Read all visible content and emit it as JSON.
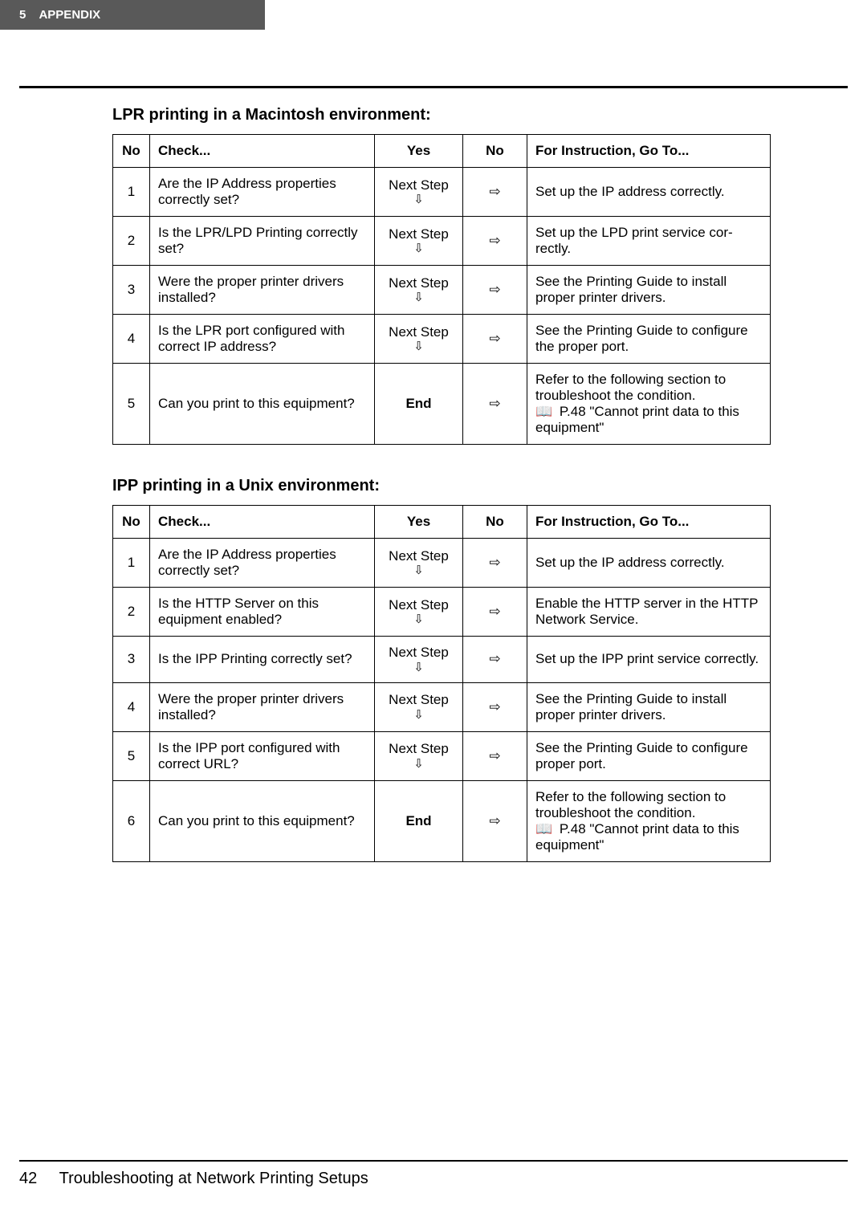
{
  "header": {
    "chapter": "5",
    "title": "APPENDIX"
  },
  "footer": {
    "page_number": "42",
    "section": "Troubleshooting at Network Printing Setups"
  },
  "glyphs": {
    "arrow_down": "⇩",
    "arrow_right": "⇨",
    "book": "📖"
  },
  "table_headers": {
    "no": "No",
    "check": "Check...",
    "yes": "Yes",
    "no_col": "No",
    "instruction": "For Instruction, Go To..."
  },
  "common": {
    "next_step": "Next Step",
    "end": "End"
  },
  "sections": [
    {
      "title": "LPR printing in a Macintosh environment:",
      "rows": [
        {
          "no": "1",
          "check": "Are the IP Address proper­ties correctly set?",
          "yes_type": "next",
          "instruction": "Set up the IP address correctly.",
          "has_ref": false
        },
        {
          "no": "2",
          "check": "Is the LPR/LPD Printing cor­rectly set?",
          "yes_type": "next",
          "instruction": "Set up the LPD print service cor­rectly.",
          "has_ref": false
        },
        {
          "no": "3",
          "check": "Were the proper printer driv­ers installed?",
          "yes_type": "next",
          "instruction": "See the Printing Guide to install proper printer drivers.",
          "has_ref": false
        },
        {
          "no": "4",
          "check": "Is the LPR port configured with correct IP address?",
          "yes_type": "next",
          "instruction": "See the Printing Guide to config­ure the proper port.",
          "has_ref": false
        },
        {
          "no": "5",
          "check": "Can you print to this equip­ment?",
          "yes_type": "end",
          "instruction": "Refer to the following section to troubleshoot the condition.",
          "has_ref": true,
          "ref": "P.48 \"Cannot print data to this equipment\""
        }
      ]
    },
    {
      "title": "IPP printing in a Unix environment:",
      "rows": [
        {
          "no": "1",
          "check": "Are the IP Address proper­ties correctly set?",
          "yes_type": "next",
          "instruction": "Set up the IP address correctly.",
          "has_ref": false
        },
        {
          "no": "2",
          "check": "Is the HTTP Server on this equipment enabled?",
          "yes_type": "next",
          "instruction": "Enable the HTTP server in the HTTP Network Service.",
          "has_ref": false
        },
        {
          "no": "3",
          "check": "Is the IPP Printing correctly set?",
          "yes_type": "next",
          "instruction": "Set up the IPP print service cor­rectly.",
          "has_ref": false
        },
        {
          "no": "4",
          "check": "Were the proper printer driv­ers installed?",
          "yes_type": "next",
          "instruction": "See the Printing Guide to install proper printer drivers.",
          "has_ref": false
        },
        {
          "no": "5",
          "check": "Is the IPP port configured with correct URL?",
          "yes_type": "next",
          "instruction": "See the Printing Guide to config­ure proper port.",
          "has_ref": false
        },
        {
          "no": "6",
          "check": "Can you print to this equip­ment?",
          "yes_type": "end",
          "instruction": "Refer to the following section to troubleshoot the condition.",
          "has_ref": true,
          "ref": "P.48 \"Cannot print data to this equipment\""
        }
      ]
    }
  ]
}
